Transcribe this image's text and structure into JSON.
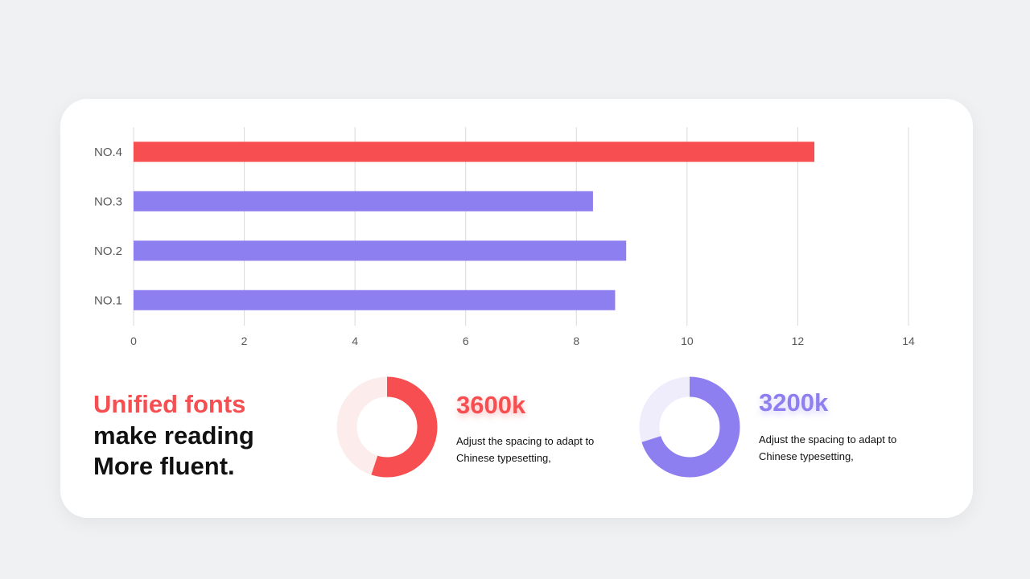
{
  "chart_data": {
    "type": "bar",
    "orientation": "horizontal",
    "categories": [
      "NO.4",
      "NO.3",
      "NO.2",
      "NO.1"
    ],
    "values": [
      12.3,
      8.3,
      8.9,
      8.7
    ],
    "bar_colors": [
      "#f74f51",
      "#8e7ff0",
      "#8e7ff0",
      "#8e7ff0"
    ],
    "xlim": [
      0,
      14
    ],
    "xticks": [
      "0",
      "2",
      "4",
      "6",
      "8",
      "10",
      "12",
      "14"
    ],
    "grid": "vertical",
    "title": "",
    "xlabel": "",
    "ylabel": ""
  },
  "headline": {
    "line1": "Unified fonts",
    "line2": "make reading",
    "line3": "More fluent."
  },
  "stats": [
    {
      "value": "3600k",
      "description": "Adjust the spacing to adapt to Chinese typesetting,",
      "fraction": 0.55,
      "color": "#f74f51",
      "track_color": "#fdecec"
    },
    {
      "value": "3200k",
      "description": "Adjust the spacing to adapt to Chinese typesetting,",
      "fraction": 0.7,
      "color": "#8e7ff0",
      "track_color": "#efedfc"
    }
  ],
  "colors": {
    "accent_red": "#f74f51",
    "accent_purple": "#8e7ff0",
    "background": "#f0f1f3",
    "card": "#ffffff"
  }
}
